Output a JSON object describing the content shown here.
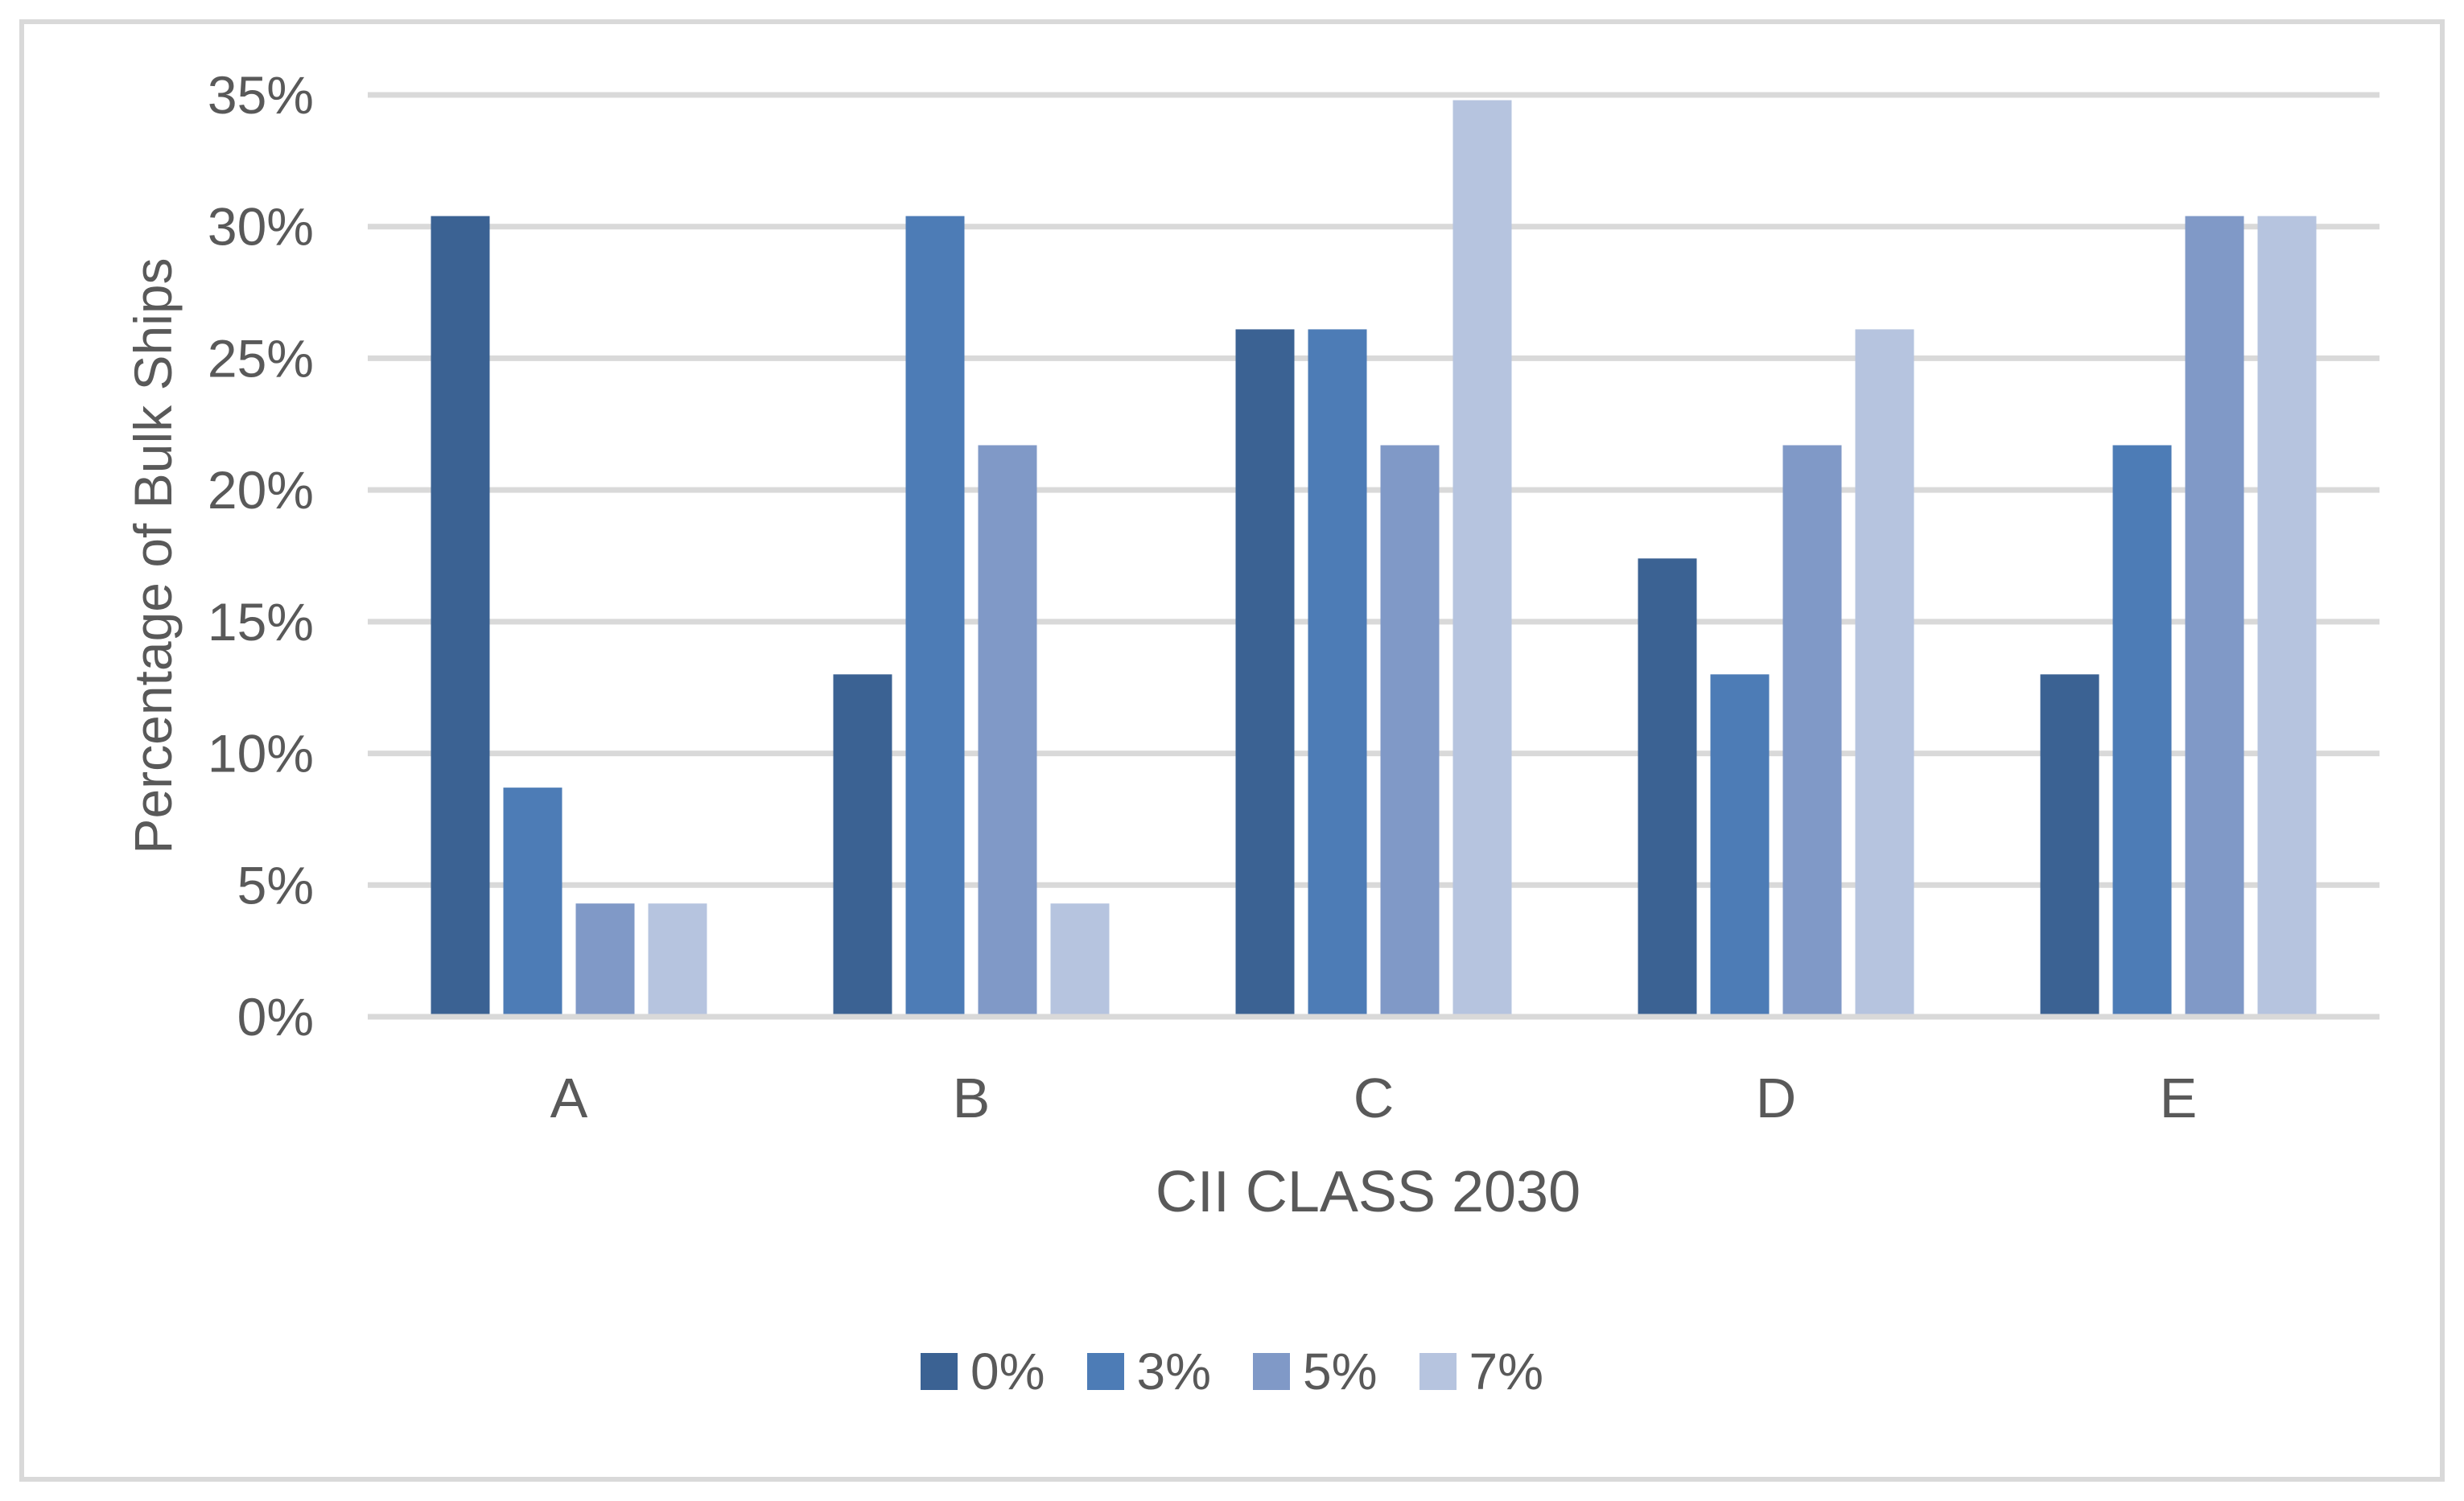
{
  "chart_data": {
    "type": "bar",
    "title": "",
    "xlabel": "CII CLASS 2030",
    "ylabel": "Percentage of Bulk Ships",
    "categories": [
      "A",
      "B",
      "C",
      "D",
      "E"
    ],
    "series": [
      {
        "name": "0%",
        "color": "#3B6293",
        "values": [
          30.4,
          13.0,
          26.1,
          17.4,
          13.0
        ]
      },
      {
        "name": "3%",
        "color": "#4D7CB6",
        "values": [
          8.7,
          30.4,
          26.1,
          13.0,
          21.7
        ]
      },
      {
        "name": "5%",
        "color": "#8099C7",
        "values": [
          4.3,
          21.7,
          21.7,
          21.7,
          30.4
        ]
      },
      {
        "name": "7%",
        "color": "#B6C4DF",
        "values": [
          4.3,
          4.3,
          34.8,
          26.1,
          30.4
        ]
      }
    ],
    "y_axis": {
      "min": 0,
      "max": 35,
      "step": 5,
      "tick_labels": [
        "0%",
        "5%",
        "10%",
        "15%",
        "20%",
        "25%",
        "30%",
        "35%"
      ]
    },
    "grid": true,
    "legend_position": "bottom",
    "colors": {
      "text": "#595959",
      "gridline": "#D9D9D9",
      "axis_line": "#D9D9D9",
      "frame_border": "#D9D9D9",
      "background": "#FFFFFF"
    }
  }
}
